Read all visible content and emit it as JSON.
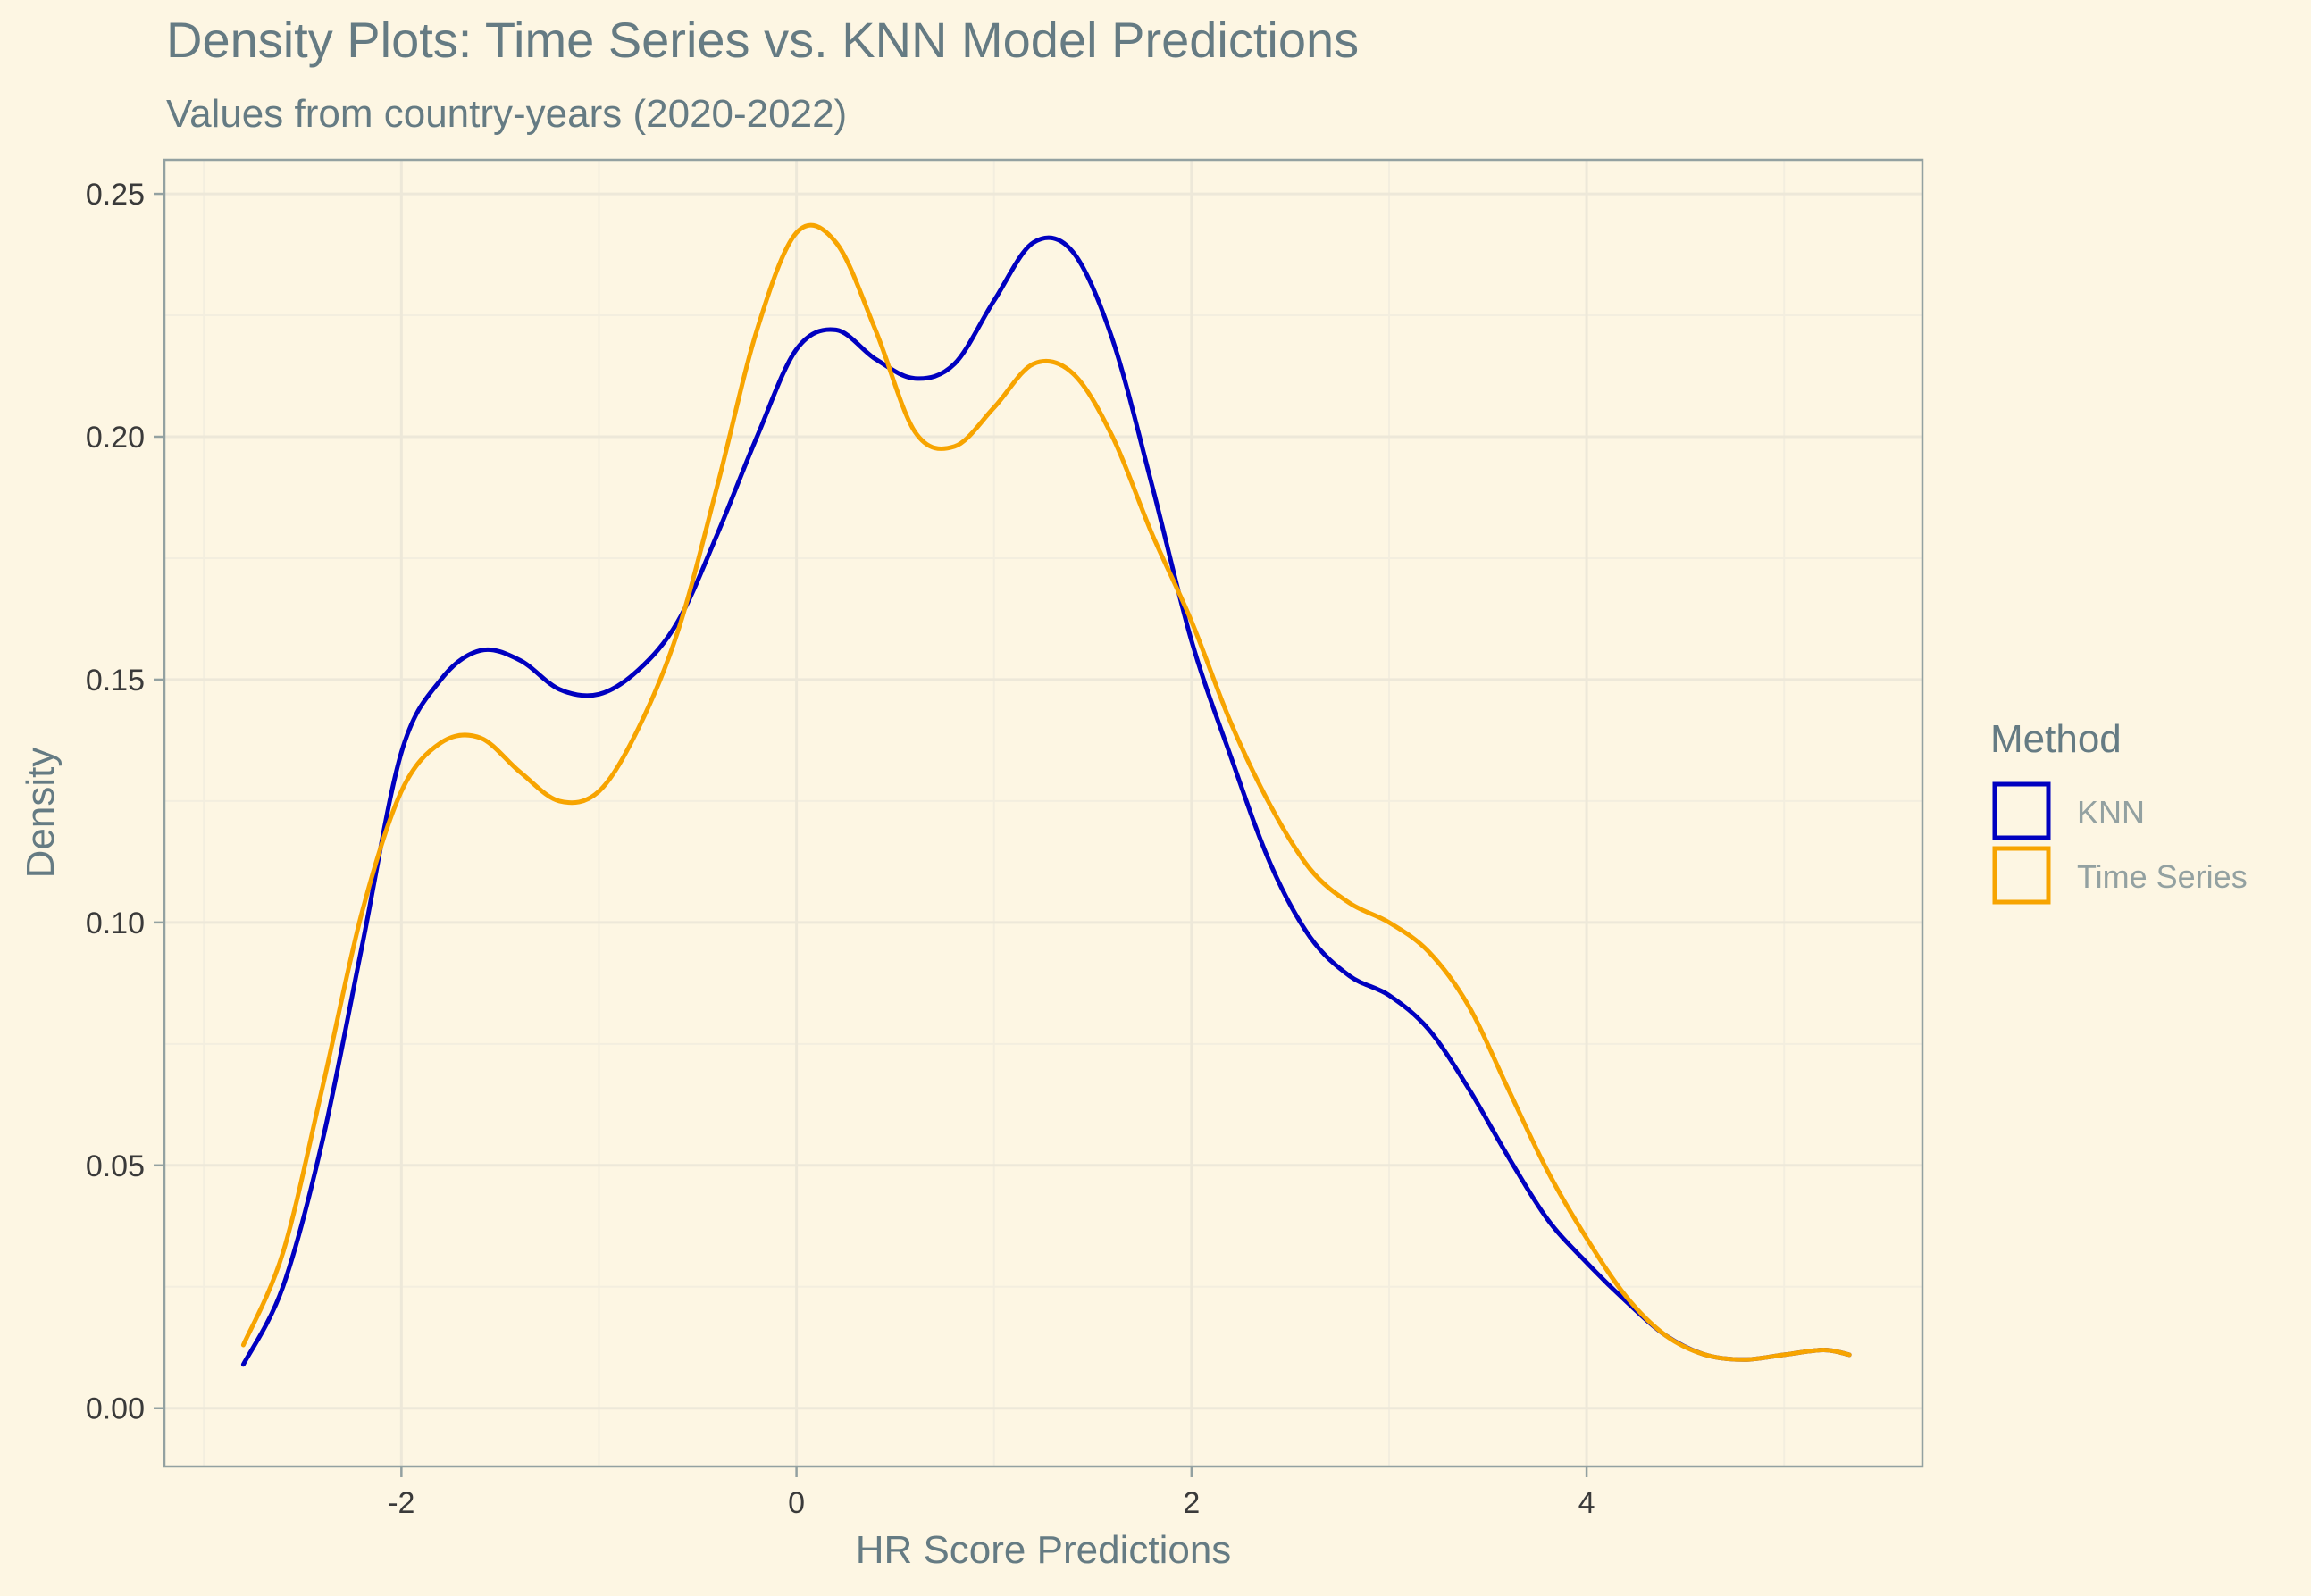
{
  "chart_data": {
    "type": "line",
    "title": "Density Plots: Time Series vs. KNN Model Predictions",
    "subtitle": "Values from country-years (2020-2022)",
    "xlabel": "HR Score Predictions",
    "ylabel": "Density",
    "xlim": [
      -3.2,
      5.7
    ],
    "ylim": [
      -0.012,
      0.257
    ],
    "x_ticks": [
      -2,
      0,
      2,
      4
    ],
    "x_tick_labels": [
      "-2",
      "0",
      "2",
      "4"
    ],
    "y_ticks": [
      0.0,
      0.05,
      0.1,
      0.15,
      0.2,
      0.25
    ],
    "y_tick_labels": [
      "0.00",
      "0.05",
      "0.10",
      "0.15",
      "0.20",
      "0.25"
    ],
    "grid": true,
    "legend": {
      "title": "Method",
      "position": "right"
    },
    "series": [
      {
        "name": "KNN",
        "color": "#0000c0",
        "points": [
          [
            -2.8,
            0.009
          ],
          [
            -2.6,
            0.025
          ],
          [
            -2.4,
            0.055
          ],
          [
            -2.2,
            0.095
          ],
          [
            -2.0,
            0.135
          ],
          [
            -1.8,
            0.15
          ],
          [
            -1.6,
            0.156
          ],
          [
            -1.4,
            0.154
          ],
          [
            -1.2,
            0.148
          ],
          [
            -1.0,
            0.147
          ],
          [
            -0.8,
            0.152
          ],
          [
            -0.6,
            0.162
          ],
          [
            -0.4,
            0.18
          ],
          [
            -0.2,
            0.2
          ],
          [
            0.0,
            0.218
          ],
          [
            0.2,
            0.222
          ],
          [
            0.4,
            0.216
          ],
          [
            0.6,
            0.212
          ],
          [
            0.8,
            0.215
          ],
          [
            1.0,
            0.228
          ],
          [
            1.2,
            0.24
          ],
          [
            1.4,
            0.238
          ],
          [
            1.6,
            0.22
          ],
          [
            1.8,
            0.19
          ],
          [
            2.0,
            0.158
          ],
          [
            2.2,
            0.134
          ],
          [
            2.4,
            0.112
          ],
          [
            2.6,
            0.097
          ],
          [
            2.8,
            0.089
          ],
          [
            3.0,
            0.085
          ],
          [
            3.2,
            0.078
          ],
          [
            3.4,
            0.066
          ],
          [
            3.6,
            0.052
          ],
          [
            3.8,
            0.039
          ],
          [
            4.0,
            0.03
          ],
          [
            4.2,
            0.022
          ],
          [
            4.4,
            0.015
          ],
          [
            4.6,
            0.011
          ],
          [
            4.8,
            0.01
          ],
          [
            5.0,
            0.011
          ],
          [
            5.2,
            0.012
          ],
          [
            5.33,
            0.011
          ]
        ]
      },
      {
        "name": "Time Series",
        "color": "#f7a400",
        "points": [
          [
            -2.8,
            0.013
          ],
          [
            -2.6,
            0.032
          ],
          [
            -2.4,
            0.066
          ],
          [
            -2.2,
            0.102
          ],
          [
            -2.0,
            0.127
          ],
          [
            -1.8,
            0.137
          ],
          [
            -1.6,
            0.138
          ],
          [
            -1.4,
            0.131
          ],
          [
            -1.2,
            0.125
          ],
          [
            -1.0,
            0.127
          ],
          [
            -0.8,
            0.14
          ],
          [
            -0.6,
            0.16
          ],
          [
            -0.4,
            0.19
          ],
          [
            -0.2,
            0.222
          ],
          [
            0.0,
            0.242
          ],
          [
            0.2,
            0.24
          ],
          [
            0.4,
            0.222
          ],
          [
            0.6,
            0.201
          ],
          [
            0.8,
            0.198
          ],
          [
            1.0,
            0.206
          ],
          [
            1.2,
            0.215
          ],
          [
            1.4,
            0.213
          ],
          [
            1.6,
            0.2
          ],
          [
            1.8,
            0.18
          ],
          [
            2.0,
            0.162
          ],
          [
            2.2,
            0.141
          ],
          [
            2.4,
            0.124
          ],
          [
            2.6,
            0.111
          ],
          [
            2.8,
            0.104
          ],
          [
            3.0,
            0.1
          ],
          [
            3.2,
            0.094
          ],
          [
            3.4,
            0.083
          ],
          [
            3.6,
            0.066
          ],
          [
            3.8,
            0.049
          ],
          [
            4.0,
            0.035
          ],
          [
            4.2,
            0.023
          ],
          [
            4.4,
            0.015
          ],
          [
            4.6,
            0.011
          ],
          [
            4.8,
            0.01
          ],
          [
            5.0,
            0.011
          ],
          [
            5.2,
            0.012
          ],
          [
            5.33,
            0.011
          ]
        ]
      }
    ]
  }
}
